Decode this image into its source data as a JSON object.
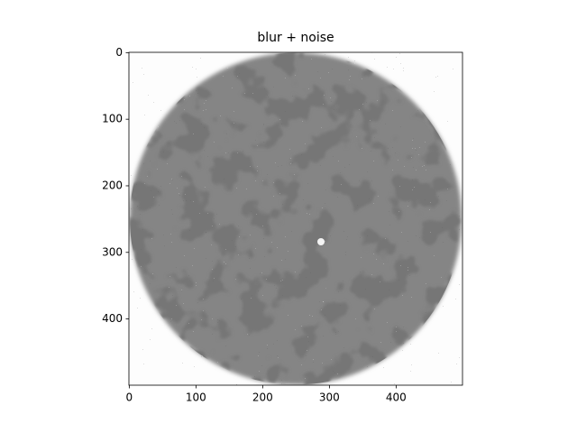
{
  "chart_data": {
    "type": "image",
    "title": "blur + noise",
    "xlim": [
      -0.5,
      499.5
    ],
    "xticks": [
      0,
      100,
      200,
      300,
      400
    ],
    "ylim": [
      499.5,
      -0.5
    ],
    "yticks": [
      0,
      100,
      200,
      300,
      400
    ],
    "grid": false
  }
}
